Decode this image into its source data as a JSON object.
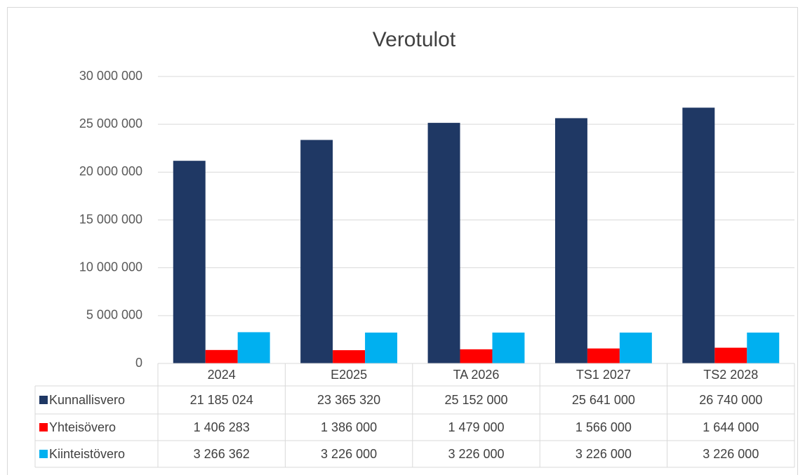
{
  "chart_data": {
    "type": "bar",
    "title": "Verotulot",
    "categories": [
      "2024",
      "E2025",
      "TA 2026",
      "TS1 2027",
      "TS2 2028"
    ],
    "series": [
      {
        "name": "Kunnallisvero",
        "color": "#1f3864",
        "values": [
          21185024,
          23365320,
          25152000,
          25641000,
          26740000
        ],
        "value_labels": [
          "21 185 024",
          "23 365 320",
          "25 152 000",
          "25 641 000",
          "26 740 000"
        ]
      },
      {
        "name": "Yhteisövero",
        "color": "#ff0000",
        "values": [
          1406283,
          1386000,
          1479000,
          1566000,
          1644000
        ],
        "value_labels": [
          "1 406 283",
          "1 386 000",
          "1 479 000",
          "1 566 000",
          "1 644 000"
        ]
      },
      {
        "name": "Kiinteistövero",
        "color": "#00b0f0",
        "values": [
          3266362,
          3226000,
          3226000,
          3226000,
          3226000
        ],
        "value_labels": [
          "3 266 362",
          "3 226 000",
          "3 226 000",
          "3 226 000",
          "3 226 000"
        ]
      }
    ],
    "ylim": [
      0,
      30000000
    ],
    "yticks": [
      0,
      {
        "value": 5000000,
        "label": "5 000 000"
      },
      {
        "value": 10000000,
        "label": "10 000 000"
      },
      {
        "value": 15000000,
        "label": "15 000 000"
      },
      {
        "value": 20000000,
        "label": "20 000 000"
      },
      {
        "value": 25000000,
        "label": "25 000 000"
      },
      {
        "value": 30000000,
        "label": "30 000 000"
      }
    ],
    "grid": true,
    "legend": "table"
  }
}
